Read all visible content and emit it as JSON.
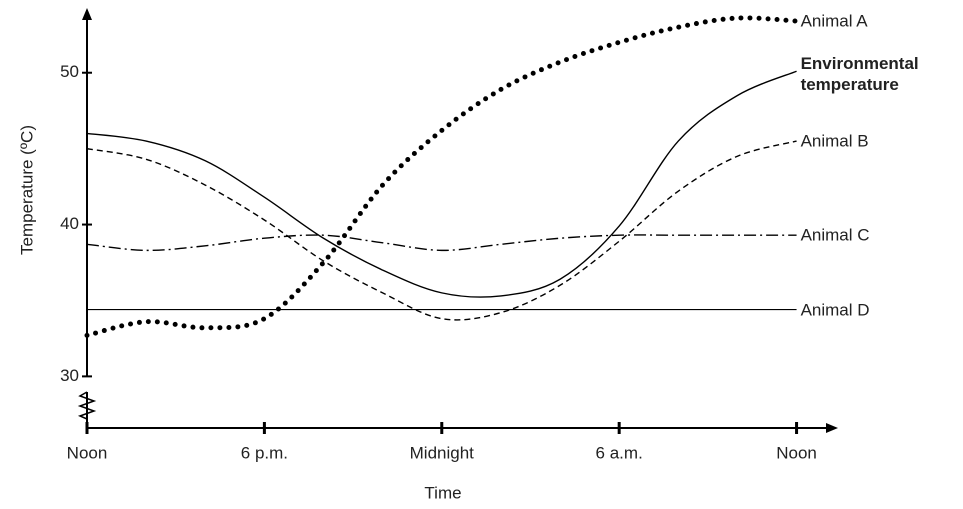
{
  "chart_data": {
    "type": "line",
    "y_label": "Temperature (ºC)",
    "x_label": "Time",
    "x": [
      0,
      2,
      4,
      6,
      8,
      10,
      12,
      14,
      16,
      18,
      20,
      22,
      24
    ],
    "xlim": [
      0,
      25.3
    ],
    "xticks": [
      {
        "value": 0,
        "label": "Noon"
      },
      {
        "value": 6,
        "label": "6 p.m."
      },
      {
        "value": 12,
        "label": "Midnight"
      },
      {
        "value": 18,
        "label": "6 a.m."
      },
      {
        "value": 24,
        "label": "Noon"
      }
    ],
    "ylim": [
      26.6,
      54
    ],
    "yticks": [
      30,
      40,
      50
    ],
    "series": [
      {
        "name": "Animal A",
        "color": "#000000",
        "style": "dotted",
        "values": [
          32.7,
          33.6,
          33.2,
          33.8,
          37.5,
          42.6,
          46.2,
          48.9,
          50.7,
          52.0,
          53.0,
          53.6,
          53.4
        ]
      },
      {
        "name": "Environmental temperature",
        "color": "#000000",
        "style": "solid",
        "bold": true,
        "values": [
          46.0,
          45.5,
          44.2,
          41.8,
          39.1,
          37.0,
          35.5,
          35.3,
          36.4,
          39.9,
          45.5,
          48.5,
          50.1
        ]
      },
      {
        "name": "Animal B",
        "color": "#000000",
        "style": "dashed",
        "values": [
          45.0,
          44.3,
          42.6,
          40.3,
          37.6,
          35.5,
          33.8,
          34.2,
          36.0,
          38.9,
          42.2,
          44.5,
          45.5
        ]
      },
      {
        "name": "Animal C",
        "color": "#000000",
        "style": "dashdot",
        "values": [
          38.7,
          38.3,
          38.6,
          39.1,
          39.3,
          38.8,
          38.3,
          38.7,
          39.1,
          39.3,
          39.3,
          39.3,
          39.3
        ]
      },
      {
        "name": "Animal D",
        "color": "#000000",
        "style": "thin",
        "values": [
          34.4,
          34.4,
          34.4,
          34.4,
          34.4,
          34.4,
          34.4,
          34.4,
          34.4,
          34.4,
          34.4,
          34.4,
          34.4
        ]
      }
    ]
  }
}
